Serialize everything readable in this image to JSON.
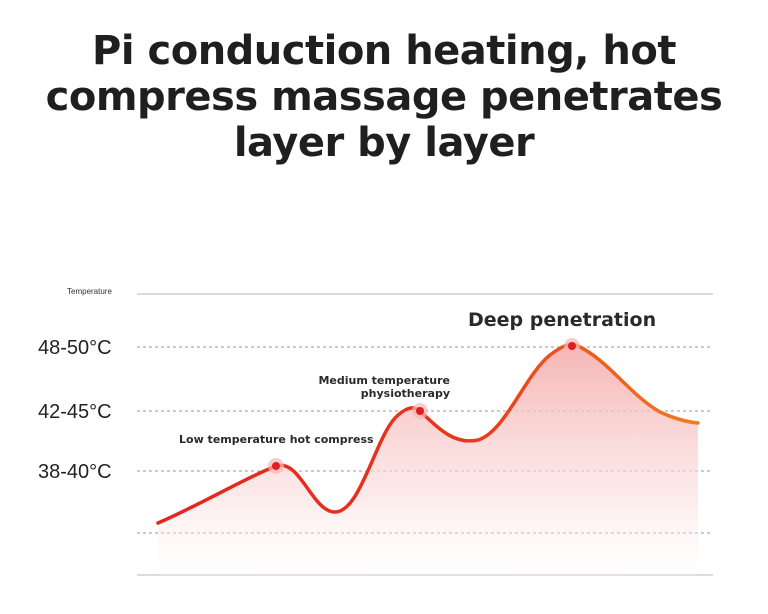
{
  "headline": {
    "line1": "Pi conduction heating, hot",
    "line2": "compress massage penetrates",
    "line3": "layer by layer"
  },
  "chart_data": {
    "type": "line",
    "ylabel": "Temperature",
    "y_tick_labels": [
      "48-50°C",
      "42-45°C",
      "38-40°C"
    ],
    "grid": "dashed horizontal",
    "colors": {
      "line": "#e8231f",
      "fill": "#f7c9c9",
      "marker": "#e02020"
    },
    "points": [
      {
        "label": "Low temperature hot compress",
        "level": "38-40°C"
      },
      {
        "label": "Medium temperature physiotherapy",
        "level": "42-45°C"
      },
      {
        "label": "Deep penetration",
        "level": "48-50°C"
      }
    ]
  },
  "annotations": {
    "low": "Low temperature hot compress",
    "medium_line1": "Medium temperature",
    "medium_line2": "physiotherapy",
    "deep": "Deep penetration"
  }
}
